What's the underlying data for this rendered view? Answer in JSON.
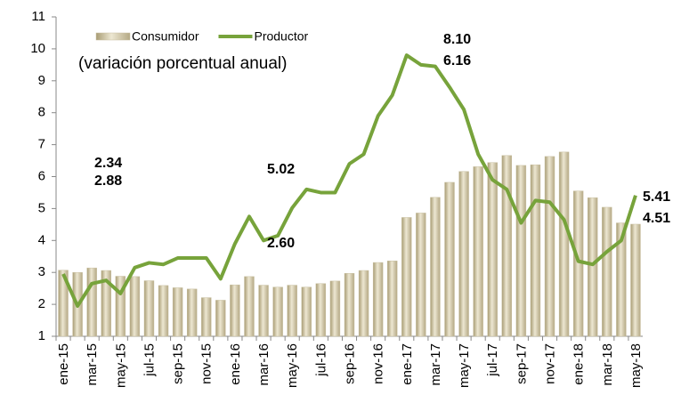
{
  "chart_data": {
    "type": "bar_line",
    "subtitle": "(variación porcentual anual)",
    "categories": [
      "ene-15",
      null,
      "mar-15",
      null,
      "may-15",
      null,
      "jul-15",
      null,
      "sep-15",
      null,
      "nov-15",
      null,
      "ene-16",
      null,
      "mar-16",
      null,
      "may-16",
      null,
      "jul-16",
      null,
      "sep-16",
      null,
      "nov-16",
      null,
      "ene-17",
      null,
      "mar-17",
      null,
      "may-17",
      null,
      "jul-17",
      null,
      "sep-17",
      null,
      "nov-17",
      null,
      "ene-18",
      null,
      "mar-18",
      null,
      "may-18"
    ],
    "series": [
      {
        "name": "Consumidor",
        "type": "bar",
        "color": "#c9c0a2",
        "values": [
          3.07,
          3.0,
          3.14,
          3.06,
          2.88,
          2.87,
          2.74,
          2.59,
          2.52,
          2.48,
          2.21,
          2.13,
          2.61,
          2.87,
          2.6,
          2.54,
          2.6,
          2.54,
          2.65,
          2.73,
          2.97,
          3.06,
          3.31,
          3.36,
          4.72,
          4.86,
          5.35,
          5.82,
          6.16,
          6.31,
          6.44,
          6.66,
          6.35,
          6.37,
          6.63,
          6.77,
          5.55,
          5.34,
          5.04,
          4.55,
          4.51
        ],
        "value_labels": [
          null,
          null,
          null,
          null,
          "2.88",
          null,
          null,
          null,
          null,
          null,
          null,
          null,
          null,
          null,
          null,
          null,
          "2.60",
          null,
          null,
          null,
          null,
          null,
          null,
          null,
          null,
          null,
          null,
          null,
          "6.16",
          null,
          null,
          null,
          null,
          null,
          null,
          null,
          null,
          null,
          null,
          null,
          "4.51"
        ],
        "label_color": "#9a8652"
      },
      {
        "name": "Productor",
        "type": "line",
        "color": "#77a33b",
        "values": [
          2.95,
          1.95,
          2.65,
          2.75,
          2.34,
          3.15,
          3.3,
          3.25,
          3.45,
          3.45,
          3.45,
          2.8,
          3.9,
          4.75,
          4.0,
          4.15,
          5.02,
          5.6,
          5.5,
          5.5,
          6.4,
          6.7,
          7.9,
          8.55,
          9.8,
          9.5,
          9.45,
          8.8,
          8.1,
          6.7,
          5.9,
          5.6,
          4.55,
          5.25,
          5.2,
          4.65,
          3.35,
          3.25,
          3.65,
          4.0,
          5.41
        ],
        "value_labels": [
          null,
          null,
          null,
          null,
          "2.34",
          null,
          null,
          null,
          null,
          null,
          null,
          null,
          null,
          null,
          null,
          null,
          "5.02",
          null,
          null,
          null,
          null,
          null,
          null,
          null,
          null,
          null,
          null,
          null,
          "8.10",
          null,
          null,
          null,
          null,
          null,
          null,
          null,
          null,
          null,
          null,
          null,
          "5.41"
        ],
        "label_color": "#6f9a2e"
      }
    ],
    "ylim": [
      1,
      11
    ],
    "yticks": [
      1,
      2,
      3,
      4,
      5,
      6,
      7,
      8,
      9,
      10,
      11
    ],
    "legend": "top-left"
  }
}
